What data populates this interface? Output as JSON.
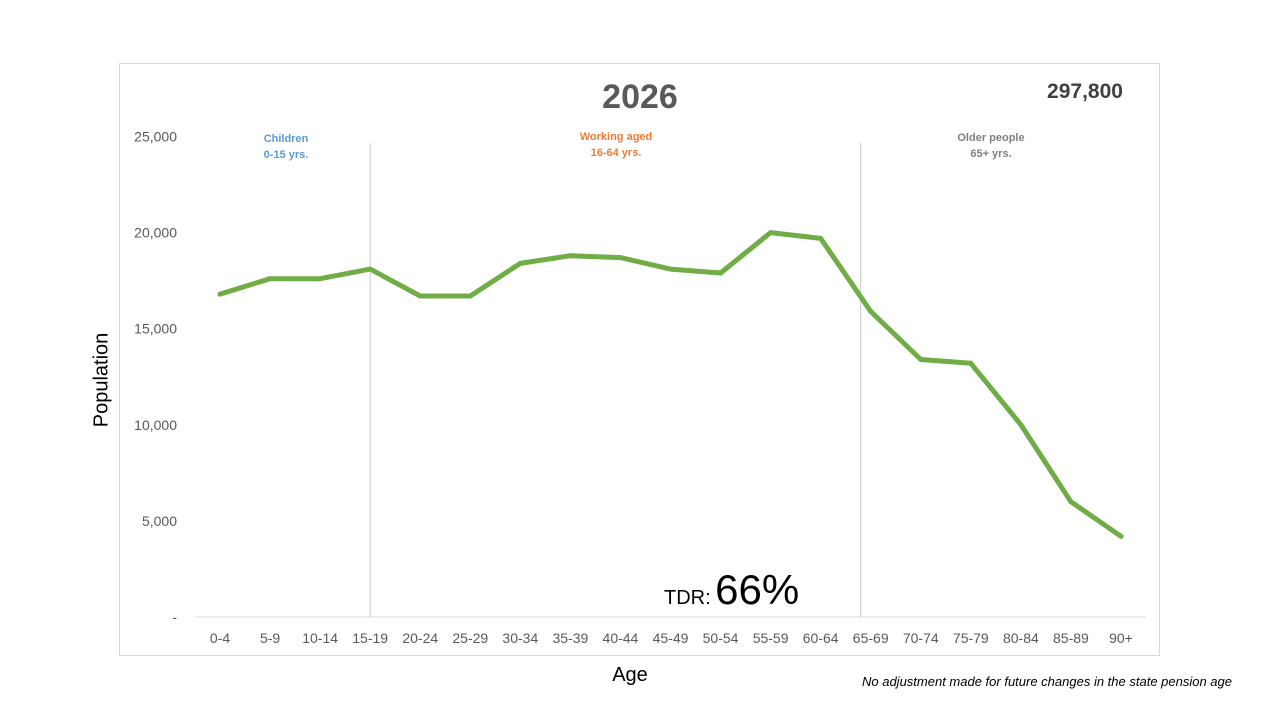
{
  "chart_data": {
    "type": "line",
    "title": "2026",
    "xlabel": "Age",
    "ylabel": "Population",
    "ylim": [
      0,
      25000
    ],
    "y_ticks": [
      0,
      5000,
      10000,
      15000,
      20000,
      25000
    ],
    "y_tick_labels": [
      "-",
      "5,000",
      "10,000",
      "15,000",
      "20,000",
      "25,000"
    ],
    "categories": [
      "0-4",
      "5-9",
      "10-14",
      "15-19",
      "20-24",
      "25-29",
      "30-34",
      "35-39",
      "40-44",
      "45-49",
      "50-54",
      "55-59",
      "60-64",
      "65-69",
      "70-74",
      "75-79",
      "80-84",
      "85-89",
      "90+"
    ],
    "series": [
      {
        "name": "",
        "color": "#70ad47",
        "values": [
          16800,
          17600,
          17600,
          18100,
          16700,
          16700,
          18400,
          18800,
          18700,
          18100,
          17900,
          20000,
          19700,
          15900,
          13400,
          13200,
          10000,
          6000,
          4200
        ]
      }
    ],
    "dividers": [
      3,
      12.8
    ],
    "grid": false,
    "annotations": {
      "total": "297,800",
      "groups": [
        {
          "line1": "Children",
          "line2": "0-15 yrs.",
          "color": "#5b9bd5"
        },
        {
          "line1": "Working aged",
          "line2": "16-64 yrs.",
          "color": "#ed7d31"
        },
        {
          "line1": "Older people",
          "line2": "65+ yrs.",
          "color": "#808080"
        }
      ],
      "tdr_label": "TDR:",
      "tdr_value": "66%",
      "footnote": "No adjustment made for future changes in the state pension age"
    }
  }
}
